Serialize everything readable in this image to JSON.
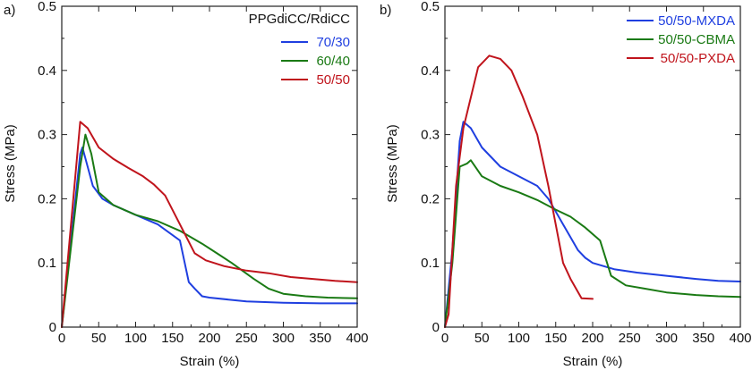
{
  "chart_data": [
    {
      "type": "line",
      "panel_label": "a)",
      "xlabel": "Strain (%)",
      "ylabel": "Stress (MPa)",
      "xlim": [
        0,
        400
      ],
      "ylim": [
        0,
        0.5
      ],
      "xticks": [
        0,
        50,
        100,
        150,
        200,
        250,
        300,
        350,
        400
      ],
      "yticks": [
        0,
        0.1,
        0.2,
        0.3,
        0.4,
        0.5
      ],
      "xtick_labels": [
        "0",
        "50",
        "100",
        "150",
        "200",
        "250",
        "300",
        "350",
        "400"
      ],
      "ytick_labels": [
        "0",
        "0.1",
        "0.2",
        "0.3",
        "0.4",
        "0.5"
      ],
      "legend_title": "PPGdiCC/RdiCC",
      "legend_position": "top-right",
      "series": [
        {
          "name": "70/30",
          "color": "#1f3fe0",
          "x": [
            0,
            25,
            28,
            35,
            42,
            55,
            70,
            100,
            130,
            160,
            172,
            180,
            190,
            200,
            250,
            300,
            350,
            400
          ],
          "y": [
            0,
            0.27,
            0.28,
            0.25,
            0.22,
            0.2,
            0.19,
            0.175,
            0.16,
            0.135,
            0.07,
            0.06,
            0.048,
            0.046,
            0.04,
            0.038,
            0.037,
            0.037
          ]
        },
        {
          "name": "60/40",
          "color": "#1a7a14",
          "x": [
            0,
            25,
            32,
            40,
            50,
            70,
            100,
            130,
            160,
            190,
            210,
            230,
            260,
            280,
            300,
            330,
            360,
            400
          ],
          "y": [
            0,
            0.25,
            0.3,
            0.27,
            0.21,
            0.19,
            0.175,
            0.165,
            0.15,
            0.13,
            0.115,
            0.1,
            0.075,
            0.06,
            0.052,
            0.048,
            0.046,
            0.045
          ]
        },
        {
          "name": "50/50",
          "color": "#c0141c",
          "x": [
            0,
            25,
            35,
            50,
            70,
            90,
            110,
            125,
            140,
            160,
            180,
            195,
            220,
            250,
            280,
            310,
            340,
            370,
            400
          ],
          "y": [
            0,
            0.32,
            0.31,
            0.28,
            0.262,
            0.248,
            0.235,
            0.222,
            0.205,
            0.16,
            0.115,
            0.104,
            0.095,
            0.088,
            0.084,
            0.078,
            0.075,
            0.072,
            0.07
          ]
        }
      ]
    },
    {
      "type": "line",
      "panel_label": "b)",
      "xlabel": "Strain (%)",
      "ylabel": "Stress (MPa)",
      "xlim": [
        0,
        400
      ],
      "ylim": [
        0,
        0.5
      ],
      "xticks": [
        0,
        50,
        100,
        150,
        200,
        250,
        300,
        350,
        400
      ],
      "yticks": [
        0,
        0.1,
        0.2,
        0.3,
        0.4,
        0.5
      ],
      "xtick_labels": [
        "0",
        "50",
        "100",
        "150",
        "200",
        "250",
        "300",
        "350",
        "400"
      ],
      "ytick_labels": [
        "0",
        "0.1",
        "0.2",
        "0.3",
        "0.4",
        "0.5"
      ],
      "legend_position": "top-right",
      "series": [
        {
          "name": "50/50-MXDA",
          "color": "#1f3fe0",
          "x": [
            0,
            10,
            20,
            25,
            35,
            50,
            75,
            100,
            125,
            140,
            150,
            160,
            170,
            180,
            190,
            200,
            230,
            260,
            300,
            340,
            370,
            400
          ],
          "y": [
            0,
            0.12,
            0.29,
            0.32,
            0.31,
            0.28,
            0.25,
            0.235,
            0.22,
            0.2,
            0.18,
            0.16,
            0.14,
            0.12,
            0.108,
            0.1,
            0.09,
            0.085,
            0.08,
            0.075,
            0.072,
            0.071
          ]
        },
        {
          "name": "50/50-CBMA",
          "color": "#1a7a14",
          "x": [
            0,
            10,
            20,
            30,
            35,
            50,
            75,
            100,
            125,
            150,
            170,
            190,
            210,
            225,
            245,
            270,
            300,
            340,
            370,
            400
          ],
          "y": [
            0,
            0.1,
            0.25,
            0.255,
            0.26,
            0.235,
            0.22,
            0.21,
            0.198,
            0.183,
            0.172,
            0.155,
            0.135,
            0.08,
            0.065,
            0.06,
            0.054,
            0.05,
            0.048,
            0.047
          ]
        },
        {
          "name": "50/50-PXDA",
          "color": "#c0141c",
          "x": [
            0,
            5,
            15,
            25,
            45,
            60,
            75,
            90,
            105,
            125,
            140,
            160,
            170,
            185,
            200
          ],
          "y": [
            0,
            0.02,
            0.22,
            0.31,
            0.405,
            0.423,
            0.418,
            0.4,
            0.36,
            0.3,
            0.22,
            0.1,
            0.075,
            0.045,
            0.044
          ]
        }
      ]
    }
  ]
}
